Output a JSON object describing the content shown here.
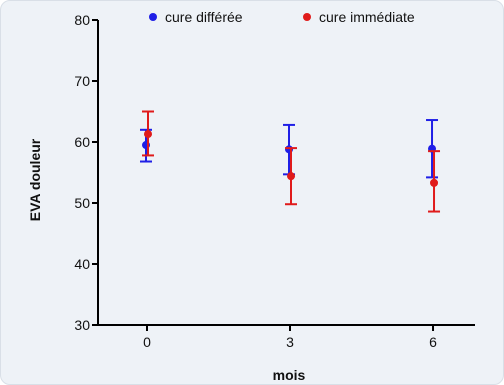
{
  "chart_data": {
    "type": "scatter",
    "title": "",
    "xlabel": "mois",
    "ylabel": "EVA douleur",
    "x_ticks": [
      0,
      3,
      6
    ],
    "y_ticks": [
      30,
      40,
      50,
      60,
      70,
      80
    ],
    "xlim": [
      -1,
      7
    ],
    "ylim": [
      30,
      80
    ],
    "grid": false,
    "legend_position": "top",
    "series": [
      {
        "name": "cure différée",
        "color": "#1f1fe6",
        "points": [
          {
            "x": 0,
            "y": 59.5,
            "err_low": 56.8,
            "err_high": 62.0
          },
          {
            "x": 3,
            "y": 58.8,
            "err_low": 54.7,
            "err_high": 62.8
          },
          {
            "x": 6,
            "y": 58.9,
            "err_low": 54.2,
            "err_high": 63.6
          }
        ]
      },
      {
        "name": "cure immédiate",
        "color": "#e01b1b",
        "points": [
          {
            "x": 0,
            "y": 61.3,
            "err_low": 57.8,
            "err_high": 65.0
          },
          {
            "x": 3,
            "y": 54.4,
            "err_low": 49.8,
            "err_high": 59.0
          },
          {
            "x": 6,
            "y": 53.3,
            "err_low": 48.6,
            "err_high": 58.5
          }
        ]
      }
    ]
  }
}
